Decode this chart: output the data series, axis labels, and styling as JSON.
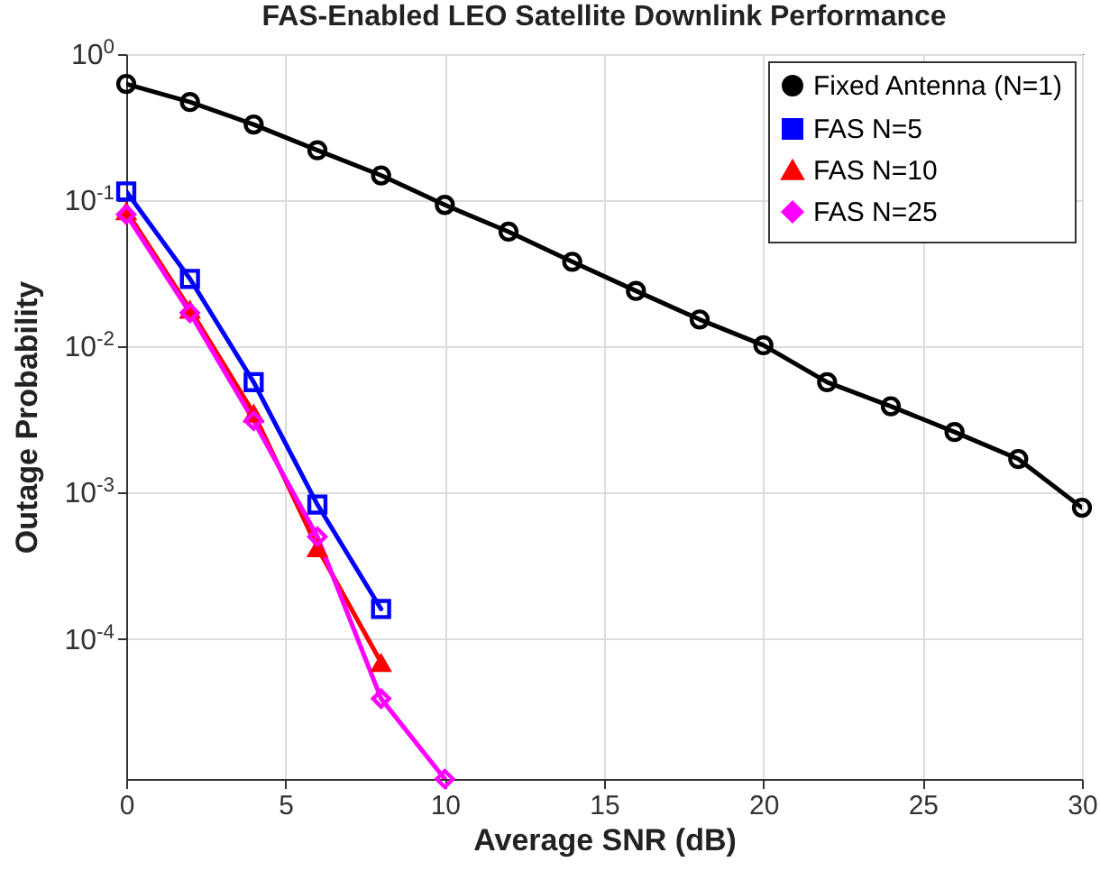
{
  "chart_data": {
    "type": "line",
    "title": "FAS-Enabled LEO Satellite Downlink Performance",
    "xlabel": "Average SNR (dB)",
    "ylabel": "Outage Probability",
    "log": "y",
    "grid": true,
    "legend": "top right",
    "xlim": [
      0,
      30
    ],
    "xticks": [
      0,
      5,
      10,
      15,
      20,
      25,
      30
    ],
    "ylim": [
      1.1e-05,
      1
    ],
    "yticks": [
      {
        "value": 0.0001,
        "label": "10$^{-4}$"
      },
      {
        "value": 0.001,
        "label": "10$^{-3}$"
      },
      {
        "value": 0.01,
        "label": "10$^{-2}$"
      },
      {
        "value": 0.1,
        "label": "10$^{-1}$"
      },
      {
        "value": 1,
        "label": "10$^{0}$"
      }
    ],
    "series": [
      {
        "name": "Fixed Antenna (N=1)",
        "color": "#000000",
        "marker": "circle",
        "x": [
          0,
          2,
          4,
          6,
          8,
          10,
          12,
          14,
          16,
          18,
          20,
          22,
          24,
          26,
          28,
          30
        ],
        "values": [
          0.625,
          0.47,
          0.33,
          0.22,
          0.148,
          0.093,
          0.061,
          0.038,
          0.024,
          0.0153,
          0.0102,
          0.0057,
          0.0039,
          0.0026,
          0.0017,
          0.00079
        ]
      },
      {
        "name": "FAS N=5",
        "color": "#0000ff",
        "marker": "square",
        "x": [
          0,
          2,
          4,
          6,
          8
        ],
        "values": [
          0.115,
          0.029,
          0.0057,
          0.00083,
          0.00016
        ]
      },
      {
        "name": "FAS N=10",
        "color": "#ff0000",
        "marker": "triangle",
        "x": [
          0,
          2,
          4,
          6,
          8
        ],
        "values": [
          0.085,
          0.018,
          0.0035,
          0.00042,
          6.9e-05
        ]
      },
      {
        "name": "FAS N=25",
        "color": "#ff00ff",
        "marker": "diamond",
        "x": [
          0,
          2,
          4,
          6,
          8,
          10
        ],
        "values": [
          0.08,
          0.017,
          0.0031,
          0.0005,
          3.9e-05,
          1.1e-05
        ]
      }
    ]
  }
}
